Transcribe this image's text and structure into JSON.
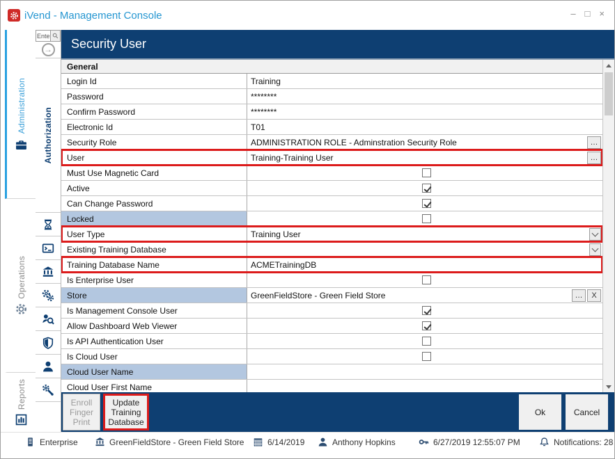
{
  "window": {
    "title": "iVend - Management Console",
    "controls": {
      "minimize": "–",
      "maximize": "□",
      "close": "×"
    }
  },
  "sidebar": {
    "tabs": [
      {
        "label": "Administration",
        "icon": "briefcase",
        "active": true
      },
      {
        "label": "Operations",
        "icon": "gear",
        "active": false
      },
      {
        "label": "Reports",
        "icon": "report",
        "active": false
      }
    ],
    "search_value": "Ente",
    "section_tab": "Authorization",
    "strip_icons": [
      "hourglass",
      "terminal",
      "bank",
      "gears",
      "audit",
      "shield",
      "user",
      "service"
    ]
  },
  "form": {
    "title": "Security User",
    "section_header": "General",
    "rows": [
      {
        "label": "Login Id",
        "type": "text",
        "value": "Training"
      },
      {
        "label": "Password",
        "type": "text",
        "value": "********"
      },
      {
        "label": "Confirm Password",
        "type": "text",
        "value": "********"
      },
      {
        "label": "Electronic Id",
        "type": "text",
        "value": "T01"
      },
      {
        "label": "Security Role",
        "type": "lookup",
        "value": "ADMINISTRATION ROLE - Adminstration Security Role"
      },
      {
        "label": "User",
        "type": "lookup",
        "value": "Training-Training User",
        "highlight": true
      },
      {
        "label": "Must Use Magnetic Card",
        "type": "checkbox",
        "checked": false
      },
      {
        "label": "Active",
        "type": "checkbox",
        "checked": true
      },
      {
        "label": "Can Change Password",
        "type": "checkbox",
        "checked": true
      },
      {
        "label": "Locked",
        "type": "checkbox",
        "checked": false,
        "label_blue": true
      },
      {
        "label": "User Type",
        "type": "dropdown",
        "value": "Training User",
        "highlight": true
      },
      {
        "label": "Existing Training Database",
        "type": "dropdown",
        "value": ""
      },
      {
        "label": "Training Database Name",
        "type": "text",
        "value": "ACMETrainingDB",
        "highlight": true
      },
      {
        "label": "Is Enterprise User",
        "type": "checkbox",
        "checked": false
      },
      {
        "label": "Store",
        "type": "lookup",
        "value": "GreenFieldStore - Green Field Store",
        "label_blue": true,
        "clear": true
      },
      {
        "label": "Is Management Console User",
        "type": "checkbox",
        "checked": true
      },
      {
        "label": "Allow Dashboard Web Viewer",
        "type": "checkbox",
        "checked": true
      },
      {
        "label": "Is API Authentication User",
        "type": "checkbox",
        "checked": false
      },
      {
        "label": "Is Cloud User",
        "type": "checkbox",
        "checked": false
      },
      {
        "label": "Cloud User Name",
        "type": "text",
        "value": "",
        "label_blue": true
      },
      {
        "label": "Cloud User First Name",
        "type": "text",
        "value": ""
      }
    ],
    "controls": {
      "ellipsis": "…",
      "clear": "X"
    }
  },
  "footer": {
    "buttons": [
      {
        "label": "Enroll Finger Print",
        "disabled": true
      },
      {
        "label": "Update Training Database",
        "highlight": true
      },
      {
        "label": "Ok"
      },
      {
        "label": "Cancel"
      }
    ]
  },
  "statusbar": {
    "items": [
      {
        "icon": "enterprise",
        "label": "Enterprise"
      },
      {
        "icon": "store",
        "label": "GreenFieldStore - Green Field Store"
      },
      {
        "icon": "calendar",
        "label": "6/14/2019"
      },
      {
        "icon": "person",
        "label": "Anthony Hopkins"
      },
      {
        "icon": "key",
        "label": "6/27/2019 12:55:07 PM"
      },
      {
        "icon": "bell",
        "label": "Notifications: 28"
      }
    ]
  },
  "colors": {
    "header_navy": "#0e3f72",
    "highlight_red": "#dc1b1b",
    "label_blue": "#b3c7e0",
    "active_tab_blue": "#2aa1e0",
    "title_text_blue": "#2596d1"
  }
}
